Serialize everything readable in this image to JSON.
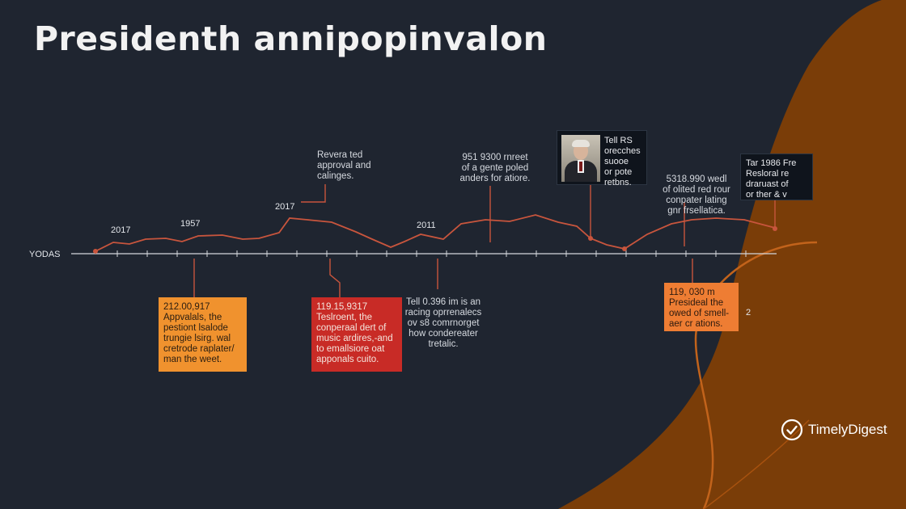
{
  "title": "Presidenth annipopinvalon",
  "axis_label": "YODAS",
  "years_above": [
    "2017",
    "1957",
    "2017",
    "2011"
  ],
  "callouts_above": {
    "c1": "Revera ted\napproval and\ncalinges.",
    "c2": "951 9300 rnreet\nof a gente poled\nanders for atiore.",
    "c3": "5318.990 wedl\nof olited red rour\nconpater lating\ngnr frsellatica."
  },
  "portrait_card": {
    "text": "Tell RS\norecches\nsuooe\nor pote\nretbns."
  },
  "dark_card_right": {
    "text": "Tar 1986 Fre\nResloral re\ndraruast of\nor ther & v"
  },
  "callout_below": "Tell 0.396 im is an\nracing oprrenalecs\nov s8 comrnorget\nhow condereater\ntretalic.",
  "boxes": [
    {
      "head": "212.00,917",
      "body": "Appvalals, the\npestiont lsalode\ntrungie lsirg. wal\ncretrode raplater/\nman the weet."
    },
    {
      "head": "119.15,9317",
      "body": "Teslroent, the\nconperaal dert of\nmusic ardires,-and\nto emallsiore oat\napponals cuito."
    },
    {
      "head": "119, 030 m",
      "body": "Presideal the\nowed of smell-\naer cr ations."
    }
  ],
  "partial_labels": [
    "2"
  ],
  "brand": "TimelyDigest",
  "colors": {
    "background": "#1f2530",
    "accent_brown": "#7a3d08",
    "line": "#c8553d",
    "box_orange": "#f0922e",
    "box_red": "#c82b26"
  },
  "icons": [
    "portrait-photo",
    "checkmark-circle-icon"
  ]
}
